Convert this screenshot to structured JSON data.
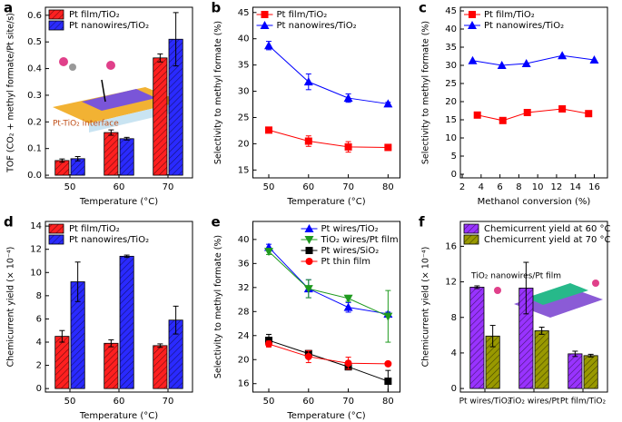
{
  "chart_data": [
    {
      "type": "bar",
      "label": "a",
      "xlabel": "Temperature (°C)",
      "ylabel": "TOF (CO₂ + methyl formate/Pt site/s)",
      "categories": [
        "50",
        "60",
        "70"
      ],
      "ylim": [
        -0.01,
        0.63
      ],
      "yticks": [
        {
          "value": 0,
          "label": "0.0"
        },
        0.1,
        0.2,
        0.3,
        0.4,
        0.5,
        0.6
      ],
      "legend": "upper left",
      "annotation": "Pt-TiO₂ interface",
      "series": [
        {
          "name": "Pt film/TiO₂",
          "color": "#ff2020",
          "values": [
            0.055,
            0.16,
            0.44
          ],
          "errors": [
            0.006,
            0.01,
            0.015
          ]
        },
        {
          "name": "Pt nanowires/TiO₂",
          "color": "#2a2aff",
          "values": [
            0.062,
            0.137,
            0.51
          ],
          "errors": [
            0.008,
            0.005,
            0.1
          ]
        }
      ]
    },
    {
      "type": "line",
      "label": "b",
      "xlabel": "Temperature (°C)",
      "ylabel": "Selectivity to methyl formate (%)",
      "x": [
        50,
        60,
        70,
        80
      ],
      "xlim": [
        46,
        83
      ],
      "xticks": [
        50,
        60,
        70,
        80
      ],
      "ylim": [
        13.5,
        46
      ],
      "yticks": [
        15,
        20,
        25,
        30,
        35,
        40,
        45
      ],
      "legend": "upper left",
      "series": [
        {
          "name": "Pt film/TiO₂",
          "color": "#ff0000",
          "marker": "square",
          "values": [
            22.6,
            20.5,
            19.4,
            19.3
          ],
          "errors": [
            0.5,
            1,
            1,
            0.3
          ]
        },
        {
          "name": "Pt nanowires/TiO₂",
          "color": "#0000ff",
          "marker": "triangle-up",
          "values": [
            38.7,
            31.8,
            28.7,
            27.6
          ],
          "errors": [
            0.8,
            1.5,
            0.8,
            0.3
          ]
        }
      ]
    },
    {
      "type": "line",
      "label": "c",
      "xlabel": "Methanol conversion (%)",
      "ylabel": "Selectivity to methyl formate (%)",
      "xlim": [
        1.8,
        17.4
      ],
      "xticks": [
        2,
        4,
        6,
        8,
        10,
        12,
        14,
        16
      ],
      "ylim": [
        -1,
        46
      ],
      "yticks": [
        0,
        5,
        10,
        15,
        20,
        25,
        30,
        35,
        40,
        45
      ],
      "legend": "upper left",
      "series": [
        {
          "name": "Pt film/TiO₂",
          "color": "#ff0000",
          "marker": "square",
          "x": [
            3.6,
            6.3,
            8.9,
            12.6,
            15.4
          ],
          "values": [
            16.3,
            14.8,
            17,
            18,
            16.7
          ]
        },
        {
          "name": "Pt nanowires/TiO₂",
          "color": "#0000ff",
          "marker": "triangle-up",
          "x": [
            3.1,
            6.2,
            8.8,
            12.6,
            16
          ],
          "values": [
            31.3,
            30,
            30.5,
            32.7,
            31.5
          ]
        }
      ]
    },
    {
      "type": "bar",
      "label": "d",
      "xlabel": "Temperature (°C)",
      "ylabel": "Chemicurrent yield (× 10⁻⁴)",
      "categories": [
        "50",
        "60",
        "70"
      ],
      "ylim": [
        -0.3,
        14.4
      ],
      "yticks": [
        0,
        2,
        4,
        6,
        8,
        10,
        12,
        14
      ],
      "legend": "upper left",
      "series": [
        {
          "name": "Pt film/TiO₂",
          "color": "#ff2020",
          "values": [
            4.5,
            3.9,
            3.7
          ],
          "errors": [
            0.5,
            0.3,
            0.15
          ]
        },
        {
          "name": "Pt nanowires/TiO₂",
          "color": "#2a2aff",
          "values": [
            9.2,
            11.4,
            5.9
          ],
          "errors": [
            1.7,
            0.1,
            1.2
          ]
        }
      ]
    },
    {
      "type": "line",
      "label": "e",
      "xlabel": "Temperature (°C)",
      "ylabel": "Selectivity to methyl formate (%)",
      "x": [
        50,
        60,
        70,
        80
      ],
      "xlim": [
        46,
        83
      ],
      "xticks": [
        50,
        60,
        70,
        80
      ],
      "ylim": [
        14.6,
        43
      ],
      "yticks": [
        16,
        20,
        24,
        28,
        32,
        36,
        40
      ],
      "legend": "upper right",
      "series": [
        {
          "name": "Pt wires/TiO₂",
          "color": "#0000ff",
          "marker": "triangle-up",
          "values": [
            38.7,
            31.8,
            28.7,
            27.6
          ],
          "errors": [
            0.5,
            1.5,
            0.8,
            0.3
          ]
        },
        {
          "name": "TiO₂ wires/Pt film",
          "color": "#1f9a1f",
          "marker": "triangle-down",
          "values": [
            38,
            31.8,
            30.2,
            27.2
          ],
          "errors": [
            0.5,
            1.5,
            0.5,
            4.3
          ]
        },
        {
          "name": "Pt wires/SiO₂",
          "color": "#000000",
          "marker": "square",
          "values": [
            23.2,
            21,
            18.8,
            16.4
          ],
          "errors": [
            1,
            0.5,
            0.5,
            1.8
          ]
        },
        {
          "name": "Pt thin film",
          "color": "#ff0000",
          "marker": "circle",
          "values": [
            22.6,
            20.5,
            19.4,
            19.3
          ],
          "errors": [
            0.5,
            1,
            1,
            0.3
          ]
        }
      ]
    },
    {
      "type": "bar",
      "label": "f",
      "ylabel": "Chemicurrent yield (× 10⁻⁴)",
      "categories": [
        "Pt wires/TiO₂",
        "TiO₂ wires/Pt",
        "Pt film/TiO₂"
      ],
      "ylim": [
        -0.4,
        18.8
      ],
      "yticks": [
        0,
        4,
        8,
        12,
        16
      ],
      "legend": "upper left",
      "annotation": "TiO₂ nanowires/Pt film",
      "series": [
        {
          "name": "Chemicurrent yield at 60 °C",
          "color": "#9933ff",
          "values": [
            11.4,
            11.3,
            3.9
          ],
          "errors": [
            0.15,
            2.9,
            0.3
          ]
        },
        {
          "name": "Chemicurrent yield at 70 °C",
          "color": "#999900",
          "values": [
            5.9,
            6.5,
            3.7
          ],
          "errors": [
            1.2,
            0.4,
            0.15
          ]
        }
      ]
    }
  ]
}
